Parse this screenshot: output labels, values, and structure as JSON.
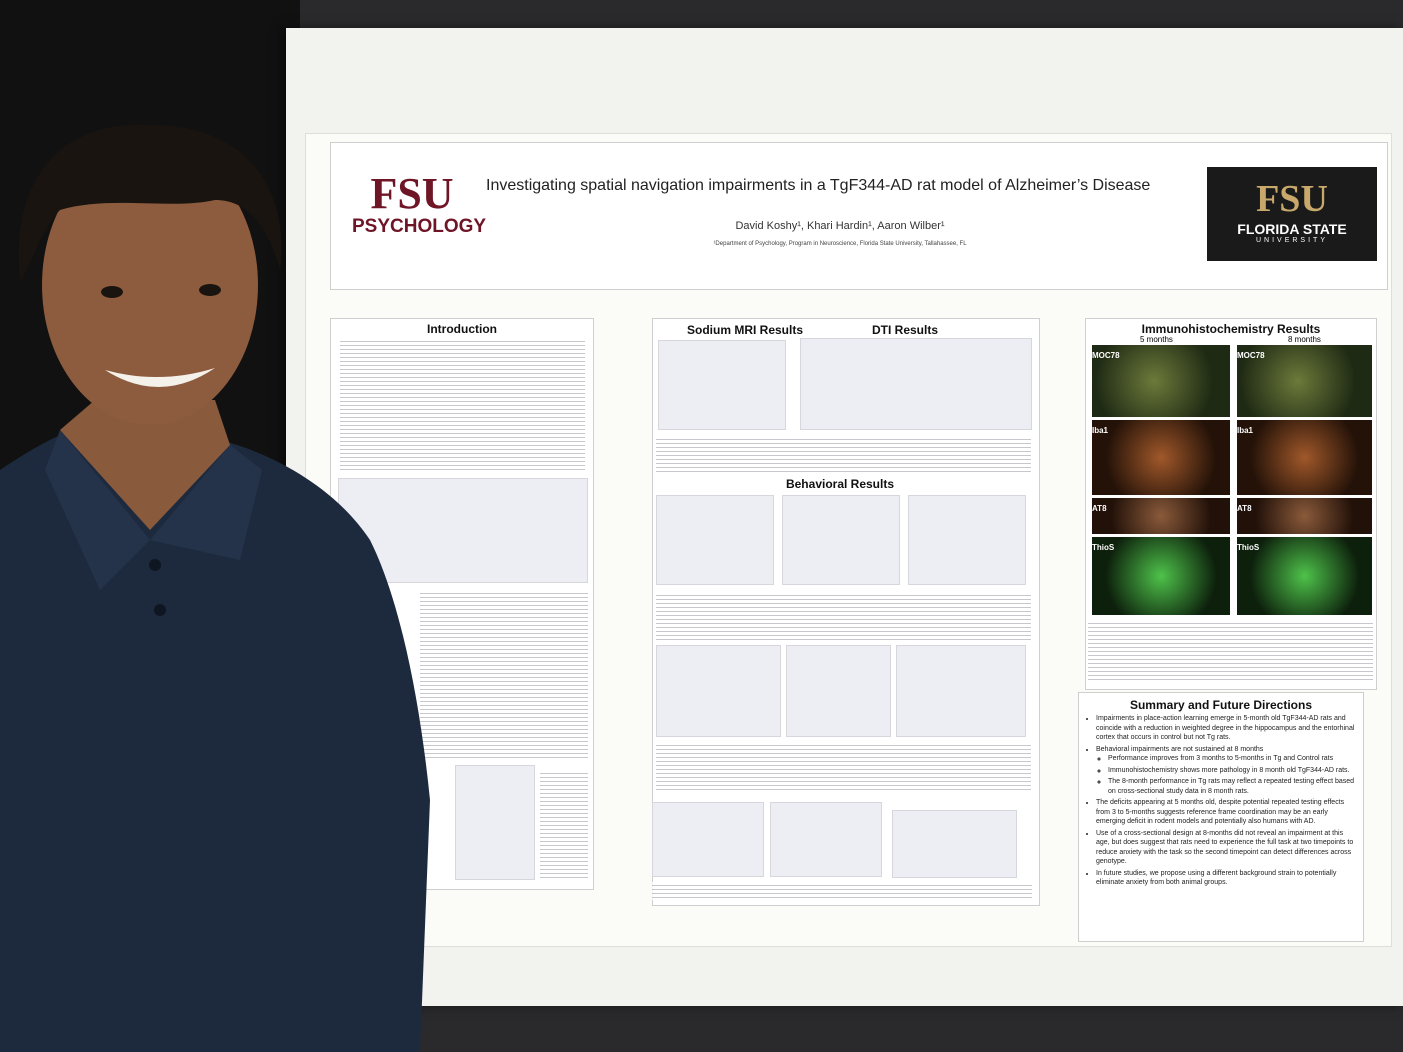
{
  "poster": {
    "logo_left": {
      "brand": "FSU",
      "subtitle": "PSYCHOLOGY"
    },
    "title": "Investigating spatial navigation impairments in a TgF344-AD rat model of Alzheimer’s Disease",
    "authors": "David Koshy¹, Khari Hardin¹, Aaron Wilber¹",
    "affiliation": "¹Department of Psychology, Program in Neuroscience, Florida State University, Tallahassee, FL",
    "logo_right": {
      "brand": "FSU",
      "name": "FLORIDA STATE",
      "subname": "UNIVERSITY"
    },
    "sections": {
      "introduction": "Introduction",
      "sodium_mri": "Sodium MRI Results",
      "dti": "DTI Results",
      "behavioral": "Behavioral Results",
      "ihc": "Immunohistochemistry Results"
    },
    "ihc_ages": [
      "5 months",
      "8 months"
    ],
    "ihc_stains": [
      "MOC78",
      "Iba1",
      "AT8",
      "ThioS"
    ],
    "summary": {
      "heading": "Summary and Future Directions",
      "items": [
        {
          "text": "Impairments in place-action learning emerge in 5-month old TgF344-AD rats and coincide with a reduction in weighted degree in the hippocampus and the entorhinal cortex that occurs in control but not Tg rats."
        },
        {
          "text": "Behavioral impairments are not sustained at 8 months",
          "subitems": [
            "Performance improves from 3 months to 5-months in Tg and Control rats",
            "Immunohistochemistry shows more pathology in 8 month old TgF344-AD rats.",
            "The 8-month performance in Tg rats may reflect a repeated testing effect based on cross-sectional study data in 8 month rats."
          ]
        },
        {
          "text": "The deficits appearing at 5 months old, despite potential repeated testing effects from 3 to 5-months suggests reference frame coordination may be an early emerging deficit in rodent models and potentially also humans with AD."
        },
        {
          "text": "Use of a cross-sectional design at 8-months did not reveal an impairment at this age, but does suggest that rats need to experience the full task at two timepoints to reduce anxiety with the task so the second timepoint can detect differences across genotype."
        },
        {
          "text": "In future studies, we propose using a different background strain to potentially eliminate anxiety from both animal groups."
        }
      ]
    }
  }
}
